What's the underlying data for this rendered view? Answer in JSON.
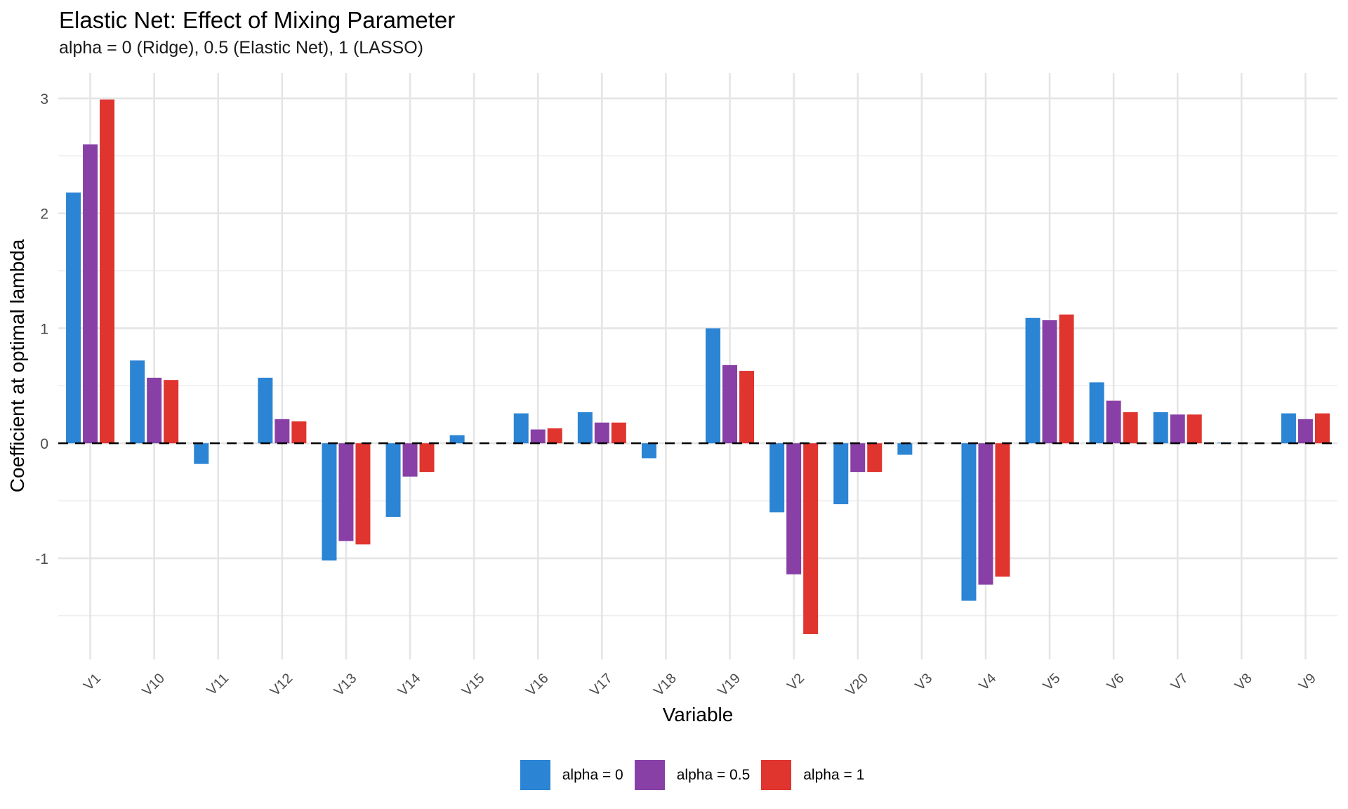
{
  "chart_data": {
    "type": "bar",
    "title": "Elastic Net: Effect of Mixing Parameter",
    "subtitle": "alpha = 0 (Ridge), 0.5 (Elastic Net), 1 (LASSO)",
    "xlabel": "Variable",
    "ylabel": "Coefficient at optimal lambda",
    "categories": [
      "V1",
      "V10",
      "V11",
      "V12",
      "V13",
      "V14",
      "V15",
      "V16",
      "V17",
      "V18",
      "V19",
      "V2",
      "V20",
      "V3",
      "V4",
      "V5",
      "V6",
      "V7",
      "V8",
      "V9"
    ],
    "series": [
      {
        "name": "alpha = 0",
        "color": "#2B84D4",
        "values": [
          2.18,
          0.72,
          -0.18,
          0.57,
          -1.02,
          -0.64,
          0.07,
          0.26,
          0.27,
          -0.13,
          1.0,
          -0.6,
          -0.53,
          -0.1,
          -1.37,
          1.09,
          0.53,
          0.27,
          0.005,
          0.26
        ]
      },
      {
        "name": "alpha = 0.5",
        "color": "#8840A6",
        "values": [
          2.6,
          0.57,
          0,
          0.21,
          -0.85,
          -0.29,
          0,
          0.12,
          0.18,
          0,
          0.68,
          -1.14,
          -0.25,
          0,
          -1.23,
          1.07,
          0.37,
          0.25,
          0,
          0.21
        ]
      },
      {
        "name": "alpha = 1",
        "color": "#E0342F",
        "values": [
          2.99,
          0.55,
          0,
          0.19,
          -0.88,
          -0.25,
          0,
          0.13,
          0.18,
          0,
          0.63,
          -1.66,
          -0.25,
          0,
          -1.16,
          1.12,
          0.27,
          0.25,
          0,
          0.26
        ]
      }
    ],
    "yticks": [
      -1,
      0,
      1,
      2,
      3
    ],
    "ytick_labels": [
      "-1",
      "0",
      "1",
      "2",
      "3"
    ],
    "ylim": [
      -1.88,
      3.22
    ],
    "reference_line": {
      "y": 0,
      "style": "dashed",
      "color": "#000000"
    },
    "grid": true,
    "legend_position": "bottom",
    "x_tick_rotation_deg": 45
  }
}
